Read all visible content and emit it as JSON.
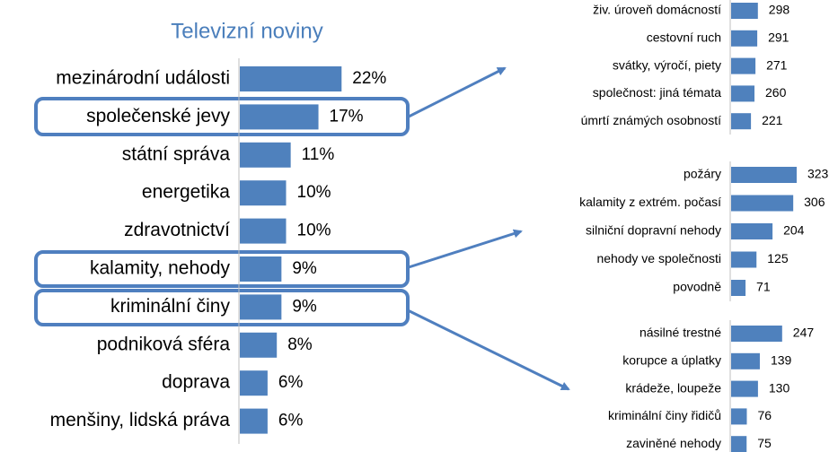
{
  "chart_data": [
    {
      "type": "bar",
      "orientation": "horizontal",
      "title": "Televizní noviny",
      "color": "#4f81bd",
      "categories": [
        "mezinárodní události",
        "společenské jevy",
        "státní správa",
        "energetika",
        "zdravotnictví",
        "kalamity, nehody",
        "kriminální činy",
        "podniková sféra",
        "doprava",
        "menšiny, lidská práva"
      ],
      "values": [
        22,
        17,
        11,
        10,
        10,
        9,
        9,
        8,
        6,
        6
      ],
      "value_labels": [
        "22%",
        "17%",
        "11%",
        "10%",
        "10%",
        "9%",
        "9%",
        "8%",
        "6%",
        "6%"
      ]
    },
    {
      "type": "bar",
      "orientation": "horizontal",
      "color": "#4f81bd",
      "categories": [
        "živ. úroveň domácností",
        "cestovní ruch",
        "svátky, výročí, piety",
        "společnost: jiná témata",
        "úmrtí známých osobností"
      ],
      "values": [
        298,
        291,
        271,
        260,
        221
      ]
    },
    {
      "type": "bar",
      "orientation": "horizontal",
      "color": "#4f81bd",
      "categories": [
        "požáry",
        "kalamity z extrém. počasí",
        "silniční dopravní nehody",
        "nehody ve společnosti",
        "povodně"
      ],
      "values": [
        323,
        306,
        204,
        125,
        71
      ]
    },
    {
      "type": "bar",
      "orientation": "horizontal",
      "color": "#4f81bd",
      "categories": [
        "násilné trestné",
        "korupce a úplatky",
        "krádeže, loupeže",
        "kriminální činy řidičů",
        "zaviněné nehody"
      ],
      "values": [
        247,
        139,
        130,
        76,
        75
      ]
    }
  ]
}
